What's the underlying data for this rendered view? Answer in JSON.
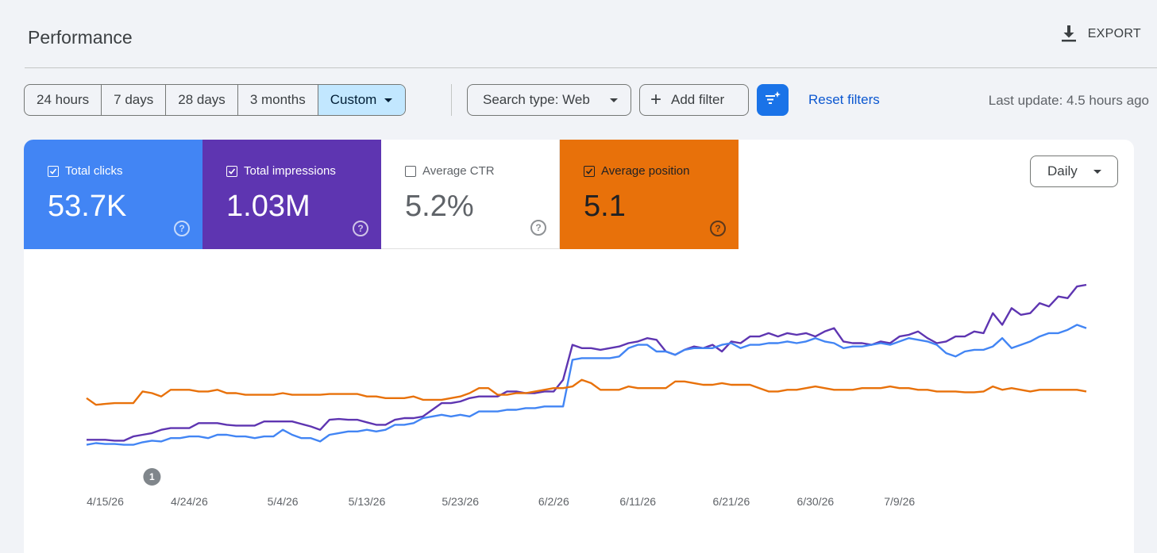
{
  "header": {
    "title": "Performance",
    "export_label": "EXPORT"
  },
  "toolbar": {
    "ranges": [
      "24 hours",
      "7 days",
      "28 days",
      "3 months",
      "Custom"
    ],
    "active_range": "Custom",
    "search_type_label": "Search type: Web",
    "add_filter_label": "Add filter",
    "reset_filters_label": "Reset filters",
    "last_update": "Last update: 4.5 hours ago"
  },
  "metrics": {
    "clicks": {
      "label": "Total clicks",
      "value": "53.7K",
      "checked": true,
      "color": "#4285f4"
    },
    "impressions": {
      "label": "Total impressions",
      "value": "1.03M",
      "checked": true,
      "color": "#5e35b1"
    },
    "ctr": {
      "label": "Average CTR",
      "value": "5.2%",
      "checked": false,
      "color": "#ffffff"
    },
    "position": {
      "label": "Average position",
      "value": "5.1",
      "checked": true,
      "color": "#e8710a"
    }
  },
  "granularity": {
    "selected": "Daily"
  },
  "chart_data": {
    "type": "line",
    "x_tick_labels": [
      "4/15/26",
      "4/24/26",
      "5/4/26",
      "5/13/26",
      "5/23/26",
      "6/2/26",
      "6/11/26",
      "6/21/26",
      "6/30/26",
      "7/9/26"
    ],
    "x_start": "4/13/26",
    "annotation": {
      "label": "1",
      "date": "4/20/26"
    },
    "normalized_scale": true,
    "series": [
      {
        "key": "impressions",
        "color": "#5e35b1",
        "values": [
          0.07,
          0.07,
          0.07,
          0.065,
          0.065,
          0.09,
          0.1,
          0.11,
          0.13,
          0.14,
          0.14,
          0.14,
          0.17,
          0.17,
          0.17,
          0.16,
          0.155,
          0.155,
          0.155,
          0.18,
          0.18,
          0.18,
          0.18,
          0.165,
          0.15,
          0.13,
          0.19,
          0.195,
          0.19,
          0.19,
          0.175,
          0.16,
          0.16,
          0.19,
          0.2,
          0.2,
          0.21,
          0.25,
          0.29,
          0.29,
          0.3,
          0.32,
          0.33,
          0.33,
          0.33,
          0.36,
          0.36,
          0.35,
          0.35,
          0.36,
          0.36,
          0.43,
          0.64,
          0.62,
          0.62,
          0.61,
          0.62,
          0.63,
          0.65,
          0.66,
          0.68,
          0.67,
          0.6,
          0.58,
          0.61,
          0.63,
          0.62,
          0.64,
          0.6,
          0.66,
          0.65,
          0.69,
          0.69,
          0.71,
          0.69,
          0.71,
          0.7,
          0.71,
          0.69,
          0.72,
          0.74,
          0.66,
          0.65,
          0.65,
          0.64,
          0.66,
          0.65,
          0.69,
          0.7,
          0.72,
          0.68,
          0.65,
          0.66,
          0.69,
          0.69,
          0.72,
          0.71,
          0.83,
          0.76,
          0.86,
          0.82,
          0.83,
          0.89,
          0.87,
          0.93,
          0.92,
          0.99,
          1.0
        ]
      },
      {
        "key": "clicks",
        "color": "#4285f4",
        "values": [
          0.04,
          0.05,
          0.045,
          0.045,
          0.04,
          0.04,
          0.055,
          0.065,
          0.06,
          0.08,
          0.08,
          0.09,
          0.09,
          0.08,
          0.1,
          0.1,
          0.09,
          0.09,
          0.08,
          0.09,
          0.09,
          0.13,
          0.1,
          0.08,
          0.08,
          0.06,
          0.1,
          0.11,
          0.12,
          0.12,
          0.13,
          0.12,
          0.13,
          0.16,
          0.16,
          0.17,
          0.2,
          0.21,
          0.22,
          0.21,
          0.22,
          0.21,
          0.24,
          0.24,
          0.24,
          0.25,
          0.25,
          0.26,
          0.26,
          0.27,
          0.27,
          0.27,
          0.55,
          0.56,
          0.56,
          0.56,
          0.56,
          0.57,
          0.62,
          0.64,
          0.64,
          0.6,
          0.6,
          0.58,
          0.61,
          0.62,
          0.62,
          0.62,
          0.64,
          0.65,
          0.62,
          0.64,
          0.64,
          0.65,
          0.65,
          0.66,
          0.65,
          0.66,
          0.68,
          0.66,
          0.65,
          0.62,
          0.63,
          0.63,
          0.64,
          0.65,
          0.64,
          0.66,
          0.68,
          0.67,
          0.66,
          0.64,
          0.59,
          0.57,
          0.6,
          0.61,
          0.61,
          0.63,
          0.68,
          0.62,
          0.64,
          0.66,
          0.69,
          0.71,
          0.71,
          0.73,
          0.76,
          0.74
        ]
      },
      {
        "key": "position",
        "color": "#e8710a",
        "values": [
          0.32,
          0.28,
          0.285,
          0.29,
          0.29,
          0.29,
          0.36,
          0.35,
          0.33,
          0.37,
          0.37,
          0.37,
          0.36,
          0.36,
          0.37,
          0.35,
          0.35,
          0.34,
          0.34,
          0.34,
          0.34,
          0.35,
          0.34,
          0.34,
          0.34,
          0.34,
          0.345,
          0.345,
          0.345,
          0.345,
          0.33,
          0.33,
          0.32,
          0.32,
          0.32,
          0.33,
          0.31,
          0.31,
          0.31,
          0.32,
          0.33,
          0.35,
          0.38,
          0.38,
          0.34,
          0.34,
          0.35,
          0.35,
          0.36,
          0.37,
          0.38,
          0.38,
          0.39,
          0.43,
          0.41,
          0.37,
          0.37,
          0.37,
          0.39,
          0.38,
          0.38,
          0.38,
          0.38,
          0.42,
          0.42,
          0.41,
          0.4,
          0.4,
          0.41,
          0.4,
          0.4,
          0.4,
          0.38,
          0.36,
          0.36,
          0.37,
          0.37,
          0.38,
          0.39,
          0.38,
          0.37,
          0.37,
          0.37,
          0.38,
          0.38,
          0.38,
          0.39,
          0.38,
          0.38,
          0.37,
          0.37,
          0.36,
          0.36,
          0.36,
          0.355,
          0.355,
          0.36,
          0.39,
          0.37,
          0.38,
          0.37,
          0.36,
          0.37,
          0.37,
          0.37,
          0.37,
          0.37,
          0.36
        ]
      }
    ]
  }
}
